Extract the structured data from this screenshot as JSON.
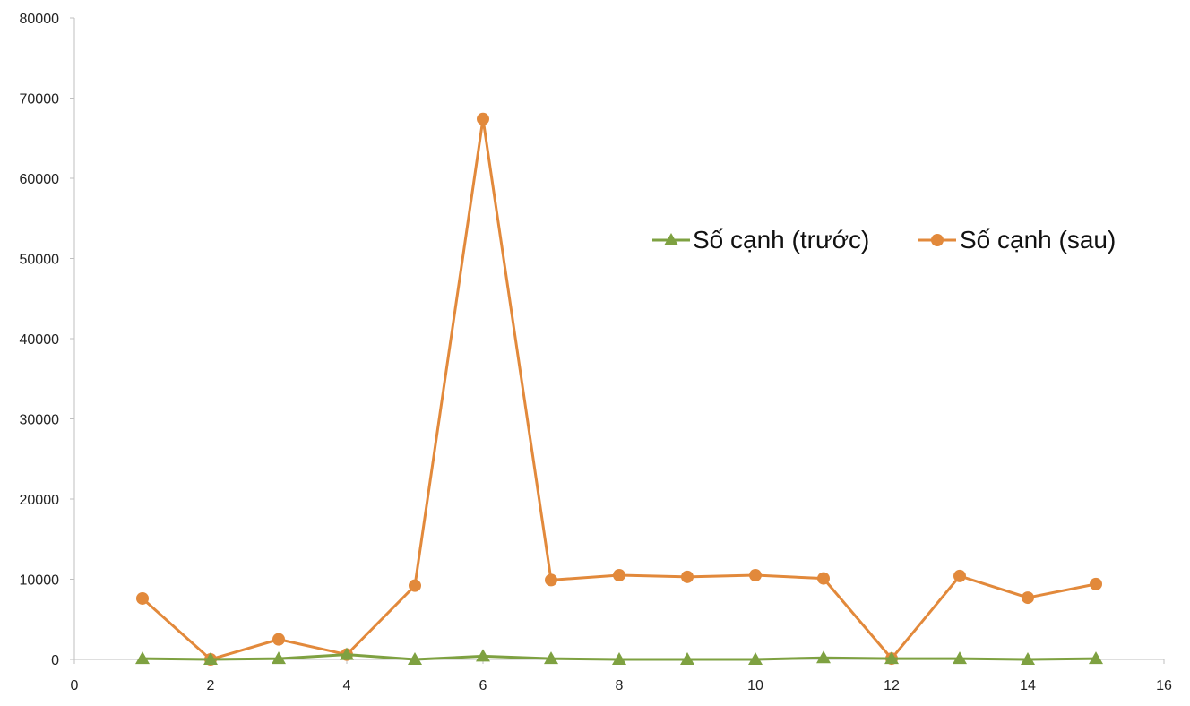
{
  "chart_data": {
    "type": "scatter",
    "title": "",
    "xlabel": "",
    "ylabel": "",
    "xlim": [
      0,
      16
    ],
    "ylim": [
      0,
      80000
    ],
    "x_ticks": [
      "0",
      "2",
      "4",
      "6",
      "8",
      "10",
      "12",
      "14",
      "16"
    ],
    "y_ticks": [
      "0",
      "10000",
      "20000",
      "30000",
      "40000",
      "50000",
      "60000",
      "70000",
      "80000"
    ],
    "grid": false,
    "legend_placement": "top-right",
    "x": [
      1,
      2,
      3,
      4,
      5,
      6,
      7,
      8,
      9,
      10,
      11,
      12,
      13,
      14,
      15
    ],
    "series": [
      {
        "name": "Số cạnh (trước)",
        "color": "#7ea141",
        "marker": "triangle",
        "values": [
          100,
          0,
          100,
          600,
          0,
          400,
          100,
          0,
          0,
          0,
          200,
          100,
          100,
          0,
          100
        ]
      },
      {
        "name": "Số cạnh (sau)",
        "color": "#e2893b",
        "marker": "circle",
        "values": [
          7600,
          0,
          2500,
          600,
          9200,
          67400,
          9900,
          10500,
          10300,
          10500,
          10100,
          100,
          10400,
          7700,
          9400
        ]
      }
    ]
  }
}
